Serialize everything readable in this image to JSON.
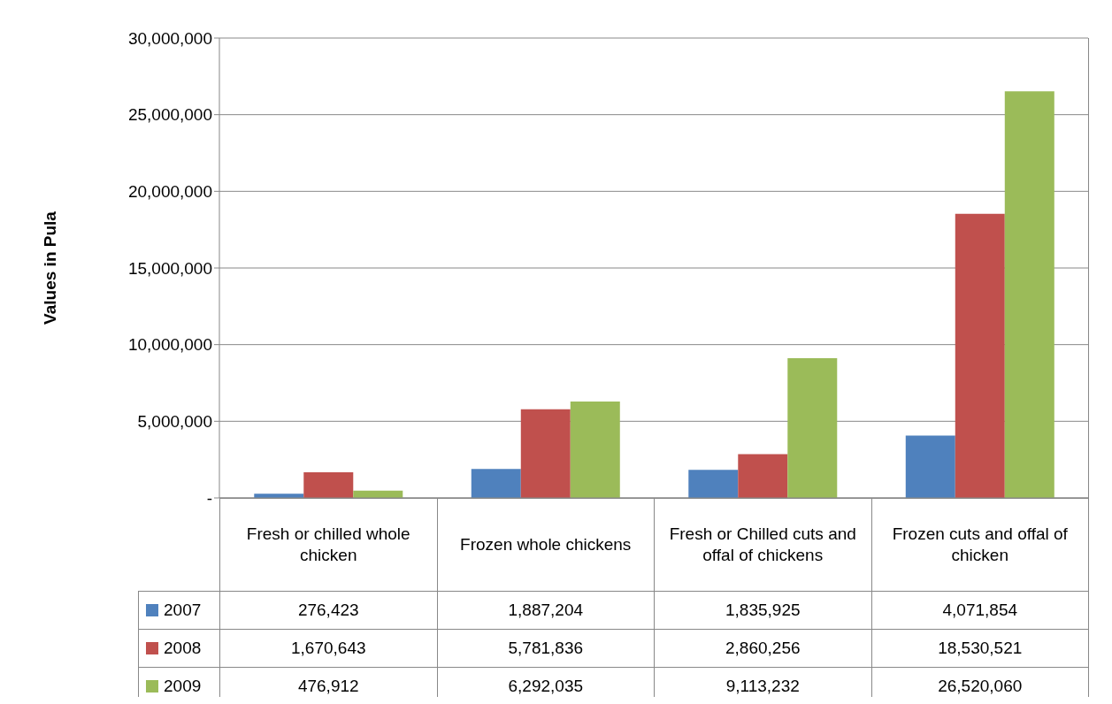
{
  "chart_data": {
    "type": "bar",
    "ylabel": "Values in Pula",
    "categories": [
      "Fresh or chilled whole chicken",
      "Frozen whole chickens",
      "Fresh or Chilled cuts and offal of chickens",
      "Frozen cuts and offal of chicken"
    ],
    "series": [
      {
        "name": "2007",
        "color": "#4f81bd",
        "values": [
          276423,
          1887204,
          1835925,
          4071854
        ],
        "value_labels": [
          "276,423",
          "1,887,204",
          "1,835,925",
          "4,071,854"
        ]
      },
      {
        "name": "2008",
        "color": "#c0504d",
        "values": [
          1670643,
          5781836,
          2860256,
          18530521
        ],
        "value_labels": [
          "1,670,643",
          "5,781,836",
          "2,860,256",
          "18,530,521"
        ]
      },
      {
        "name": "2009",
        "color": "#9bbb59",
        "values": [
          476912,
          6292035,
          9113232,
          26520060
        ],
        "value_labels": [
          "476,912",
          "6,292,035",
          "9,113,232",
          "26,520,060"
        ]
      }
    ],
    "ylim": [
      0,
      30000000
    ],
    "yticks": [
      {
        "value": 0,
        "label": "-"
      },
      {
        "value": 5000000,
        "label": "5,000,000"
      },
      {
        "value": 10000000,
        "label": "10,000,000"
      },
      {
        "value": 15000000,
        "label": "15,000,000"
      },
      {
        "value": 20000000,
        "label": "20,000,000"
      },
      {
        "value": 25000000,
        "label": "25,000,000"
      },
      {
        "value": 30000000,
        "label": "30,000,000"
      }
    ],
    "grid": "y",
    "legend": "bottom"
  }
}
